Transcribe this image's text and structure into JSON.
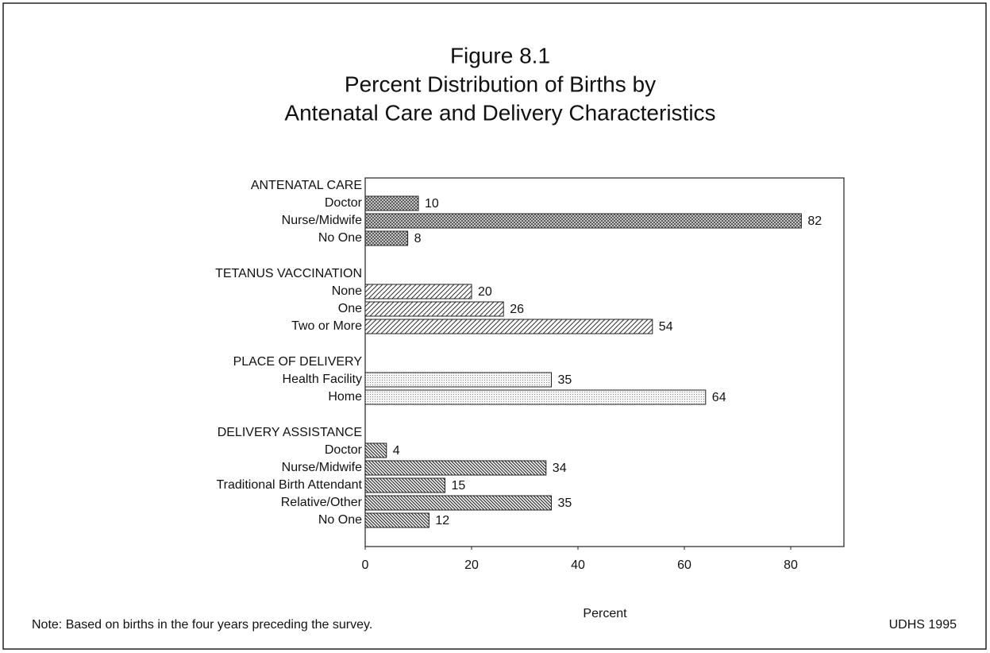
{
  "chart_data": {
    "type": "grouped-hbar",
    "title": [
      "Figure 8.1",
      "Percent Distribution of Births by",
      "Antenatal Care and Delivery Characteristics"
    ],
    "groups": [
      {
        "name": "ANTENATAL CARE",
        "pattern": "crosshatch",
        "categories": [
          "Doctor",
          "Nurse/Midwife",
          "No One"
        ],
        "values": [
          10,
          82,
          8
        ]
      },
      {
        "name": "TETANUS VACCINATION",
        "pattern": "diagonal",
        "categories": [
          "None",
          "One",
          "Two or More"
        ],
        "values": [
          20,
          26,
          54
        ]
      },
      {
        "name": "PLACE OF DELIVERY",
        "pattern": "dots",
        "categories": [
          "Health Facility",
          "Home"
        ],
        "values": [
          35,
          64
        ]
      },
      {
        "name": "DELIVERY ASSISTANCE",
        "pattern": "dense-diagonal",
        "categories": [
          "Doctor",
          "Nurse/Midwife",
          "Traditional Birth Attendant",
          "Relative/Other",
          "No One"
        ],
        "values": [
          4,
          34,
          15,
          35,
          12
        ]
      }
    ],
    "xlim": [
      0,
      90
    ],
    "xticks": [
      0,
      20,
      40,
      60,
      80
    ],
    "x_label": "Percent",
    "note": "Note: Based on births in the four years preceding the survey.",
    "source": "UDHS 1995"
  }
}
